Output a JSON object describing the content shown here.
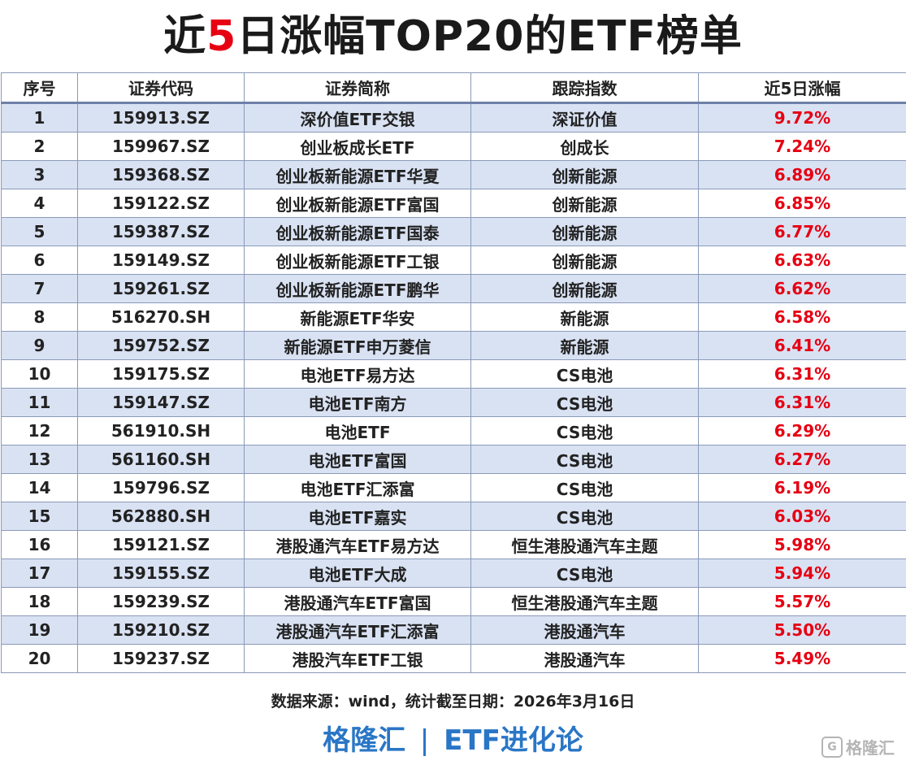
{
  "title": {
    "prefix": "近",
    "highlight": "5",
    "suffix": "日涨幅TOP20的ETF榜单"
  },
  "table": {
    "headers": [
      "序号",
      "证券代码",
      "证券简称",
      "跟踪指数",
      "近5日涨幅"
    ],
    "rows": [
      [
        "1",
        "159913.SZ",
        "深价值ETF交银",
        "深证价值",
        "9.72%"
      ],
      [
        "2",
        "159967.SZ",
        "创业板成长ETF",
        "创成长",
        "7.24%"
      ],
      [
        "3",
        "159368.SZ",
        "创业板新能源ETF华夏",
        "创新能源",
        "6.89%"
      ],
      [
        "4",
        "159122.SZ",
        "创业板新能源ETF富国",
        "创新能源",
        "6.85%"
      ],
      [
        "5",
        "159387.SZ",
        "创业板新能源ETF国泰",
        "创新能源",
        "6.77%"
      ],
      [
        "6",
        "159149.SZ",
        "创业板新能源ETF工银",
        "创新能源",
        "6.63%"
      ],
      [
        "7",
        "159261.SZ",
        "创业板新能源ETF鹏华",
        "创新能源",
        "6.62%"
      ],
      [
        "8",
        "516270.SH",
        "新能源ETF华安",
        "新能源",
        "6.58%"
      ],
      [
        "9",
        "159752.SZ",
        "新能源ETF申万菱信",
        "新能源",
        "6.41%"
      ],
      [
        "10",
        "159175.SZ",
        "电池ETF易方达",
        "CS电池",
        "6.31%"
      ],
      [
        "11",
        "159147.SZ",
        "电池ETF南方",
        "CS电池",
        "6.31%"
      ],
      [
        "12",
        "561910.SH",
        "电池ETF",
        "CS电池",
        "6.29%"
      ],
      [
        "13",
        "561160.SH",
        "电池ETF富国",
        "CS电池",
        "6.27%"
      ],
      [
        "14",
        "159796.SZ",
        "电池ETF汇添富",
        "CS电池",
        "6.19%"
      ],
      [
        "15",
        "562880.SH",
        "电池ETF嘉实",
        "CS电池",
        "6.03%"
      ],
      [
        "16",
        "159121.SZ",
        "港股通汽车ETF易方达",
        "恒生港股通汽车主题",
        "5.98%"
      ],
      [
        "17",
        "159155.SZ",
        "电池ETF大成",
        "CS电池",
        "5.94%"
      ],
      [
        "18",
        "159239.SZ",
        "港股通汽车ETF富国",
        "恒生港股通汽车主题",
        "5.57%"
      ],
      [
        "19",
        "159210.SZ",
        "港股通汽车ETF汇添富",
        "港股通汽车",
        "5.50%"
      ],
      [
        "20",
        "159237.SZ",
        "港股汽车ETF工银",
        "港股通汽车",
        "5.49%"
      ]
    ]
  },
  "source": "数据来源：wind，统计截至日期：2026年3月16日",
  "footer": {
    "left": "格隆汇",
    "right": "ETF进化论"
  },
  "watermark": {
    "icon": "gelonghui-logo-icon",
    "text": "格隆汇"
  },
  "colors": {
    "accent_red": "#e60012",
    "footer_blue": "#2a76c6",
    "row_stripe": "#d9e2f3"
  }
}
